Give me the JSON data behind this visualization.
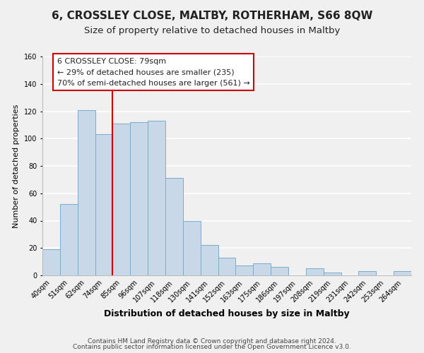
{
  "title": "6, CROSSLEY CLOSE, MALTBY, ROTHERHAM, S66 8QW",
  "subtitle": "Size of property relative to detached houses in Maltby",
  "xlabel": "Distribution of detached houses by size in Maltby",
  "ylabel": "Number of detached properties",
  "bar_labels": [
    "40sqm",
    "51sqm",
    "62sqm",
    "74sqm",
    "85sqm",
    "96sqm",
    "107sqm",
    "118sqm",
    "130sqm",
    "141sqm",
    "152sqm",
    "163sqm",
    "175sqm",
    "186sqm",
    "197sqm",
    "208sqm",
    "219sqm",
    "231sqm",
    "242sqm",
    "253sqm",
    "264sqm"
  ],
  "bar_values": [
    19,
    52,
    121,
    103,
    111,
    112,
    113,
    71,
    40,
    22,
    13,
    7,
    9,
    6,
    0,
    5,
    2,
    0,
    3,
    0,
    3
  ],
  "bar_color": "#c8d8e8",
  "bar_edge_color": "#7aaccc",
  "vline_x": 3.5,
  "vline_color": "#cc0000",
  "ylim": [
    0,
    160
  ],
  "yticks": [
    0,
    20,
    40,
    60,
    80,
    100,
    120,
    140,
    160
  ],
  "annotation_title": "6 CROSSLEY CLOSE: 79sqm",
  "annotation_line1": "← 29% of detached houses are smaller (235)",
  "annotation_line2": "70% of semi-detached houses are larger (561) →",
  "annotation_box_color": "#ffffff",
  "annotation_box_edge": "#cc0000",
  "footer_line1": "Contains HM Land Registry data © Crown copyright and database right 2024.",
  "footer_line2": "Contains public sector information licensed under the Open Government Licence v3.0.",
  "background_color": "#f0f0f0",
  "grid_color": "#ffffff",
  "title_fontsize": 11,
  "subtitle_fontsize": 9.5,
  "xlabel_fontsize": 9,
  "ylabel_fontsize": 8,
  "tick_fontsize": 7,
  "ann_fontsize": 8,
  "footer_fontsize": 6.5
}
